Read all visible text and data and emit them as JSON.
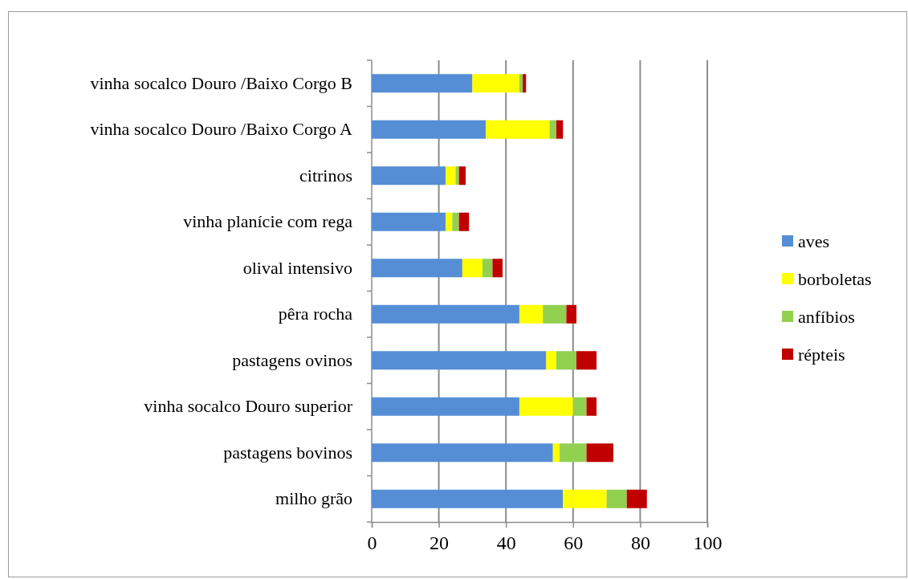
{
  "chart_data": {
    "type": "bar",
    "orientation": "horizontal",
    "stacked": true,
    "categories": [
      "vinha socalco Douro /Baixo Corgo B",
      "vinha socalco Douro /Baixo Corgo A",
      "citrinos",
      "vinha planície com rega",
      "olival intensivo",
      "pêra rocha",
      "pastagens ovinos",
      "vinha socalco Douro superior",
      "pastagens bovinos",
      "milho grão"
    ],
    "series": [
      {
        "name": "aves",
        "color": "#558ed5",
        "values": [
          30,
          34,
          22,
          22,
          27,
          44,
          52,
          44,
          54,
          57
        ]
      },
      {
        "name": "borboletas",
        "color": "#ffff00",
        "values": [
          14,
          19,
          3,
          2,
          6,
          7,
          3,
          16,
          2,
          13
        ]
      },
      {
        "name": "anfíbios",
        "color": "#92d050",
        "values": [
          1,
          2,
          1,
          2,
          3,
          7,
          6,
          4,
          8,
          6
        ]
      },
      {
        "name": "répteis",
        "color": "#c00000",
        "values": [
          1,
          2,
          2,
          3,
          3,
          3,
          6,
          3,
          8,
          6
        ]
      }
    ],
    "xlim": [
      0,
      100
    ],
    "xticks": [
      0,
      20,
      40,
      60,
      80,
      100
    ],
    "grid": "x",
    "legend": "right"
  }
}
